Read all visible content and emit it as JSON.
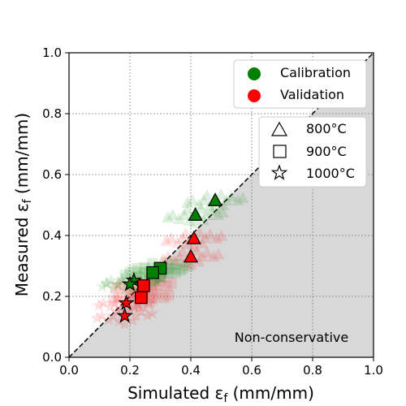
{
  "chart_data": {
    "type": "scatter",
    "title": "",
    "xlabel": "Simulated ε",
    "xlabel_sub": "f",
    "xlabel_unit": " (mm/mm)",
    "ylabel": "Measured ε",
    "ylabel_sub": "f",
    "ylabel_unit": " (mm/mm)",
    "xlim": [
      0.0,
      1.0
    ],
    "ylim": [
      0.0,
      1.0
    ],
    "xticks": [
      "0.0",
      "0.2",
      "0.4",
      "0.6",
      "0.8",
      "1.0"
    ],
    "yticks": [
      "0.0",
      "0.2",
      "0.4",
      "0.6",
      "0.8",
      "1.0"
    ],
    "grid": true,
    "identity_line": true,
    "shaded_region_label": "Non-conservative",
    "colors": {
      "calibration": "#008000",
      "validation": "#ff0000",
      "shade": "#d8d8d8"
    },
    "legend_color": {
      "placement": "top-right",
      "entries": [
        {
          "label": "Calibration",
          "color": "#008000"
        },
        {
          "label": "Validation",
          "color": "#ff0000"
        }
      ]
    },
    "legend_marker": {
      "placement": "upper-right",
      "entries": [
        {
          "label": "800°C",
          "marker": "triangle"
        },
        {
          "label": "900°C",
          "marker": "square"
        },
        {
          "label": "1000°C",
          "marker": "star"
        }
      ]
    },
    "series": [
      {
        "group": "calibration",
        "temp": "800",
        "marker": "triangle",
        "x": 0.415,
        "y": 0.467
      },
      {
        "group": "calibration",
        "temp": "800",
        "marker": "triangle",
        "x": 0.48,
        "y": 0.515
      },
      {
        "group": "validation",
        "temp": "800",
        "marker": "triangle",
        "x": 0.41,
        "y": 0.39
      },
      {
        "group": "validation",
        "temp": "800",
        "marker": "triangle",
        "x": 0.4,
        "y": 0.33
      },
      {
        "group": "calibration",
        "temp": "900",
        "marker": "square",
        "x": 0.3,
        "y": 0.292
      },
      {
        "group": "calibration",
        "temp": "900",
        "marker": "square",
        "x": 0.275,
        "y": 0.278
      },
      {
        "group": "validation",
        "temp": "900",
        "marker": "square",
        "x": 0.245,
        "y": 0.235
      },
      {
        "group": "validation",
        "temp": "900",
        "marker": "square",
        "x": 0.237,
        "y": 0.196
      },
      {
        "group": "calibration",
        "temp": "1000",
        "marker": "star",
        "x": 0.213,
        "y": 0.252
      },
      {
        "group": "calibration",
        "temp": "1000",
        "marker": "star",
        "x": 0.2,
        "y": 0.24
      },
      {
        "group": "validation",
        "temp": "1000",
        "marker": "star",
        "x": 0.188,
        "y": 0.178
      },
      {
        "group": "validation",
        "temp": "1000",
        "marker": "star",
        "x": 0.183,
        "y": 0.136
      }
    ]
  }
}
